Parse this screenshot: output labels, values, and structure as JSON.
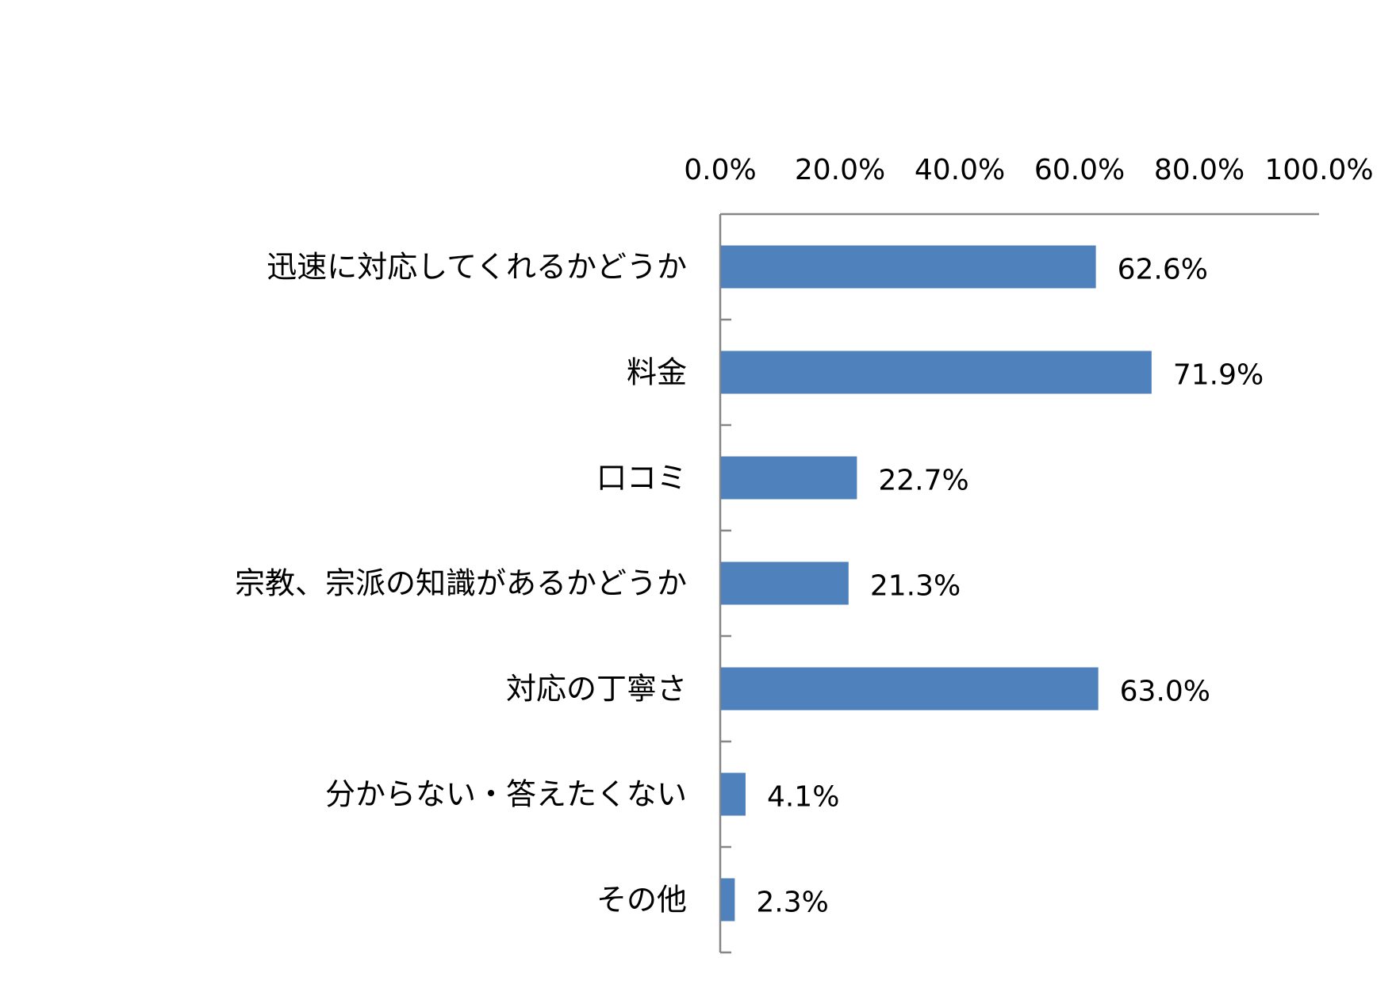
{
  "chart_data": {
    "type": "bar",
    "orientation": "horizontal",
    "x_axis_position": "top",
    "xlim": [
      0,
      100
    ],
    "x_ticks": [
      "0.0%",
      "20.0%",
      "40.0%",
      "60.0%",
      "80.0%",
      "100.0%"
    ],
    "grid": false,
    "bar_color": "#4F81BD",
    "categories": [
      "迅速に対応してくれるかどうか",
      "料金",
      "口コミ",
      "宗教、宗派の知識があるかどうか",
      "対応の丁寧さ",
      "分からない・答えたくない",
      "その他"
    ],
    "values": [
      62.6,
      71.9,
      22.7,
      21.3,
      63.0,
      4.1,
      2.3
    ],
    "value_labels": [
      "62.6%",
      "71.9%",
      "22.7%",
      "21.3%",
      "63.0%",
      "4.1%",
      "2.3%"
    ]
  }
}
